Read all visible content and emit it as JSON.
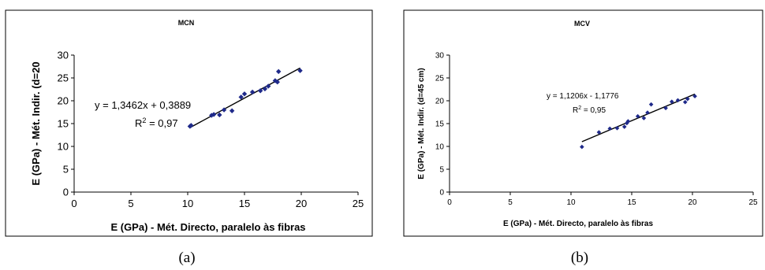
{
  "chart_data": [
    {
      "type": "scatter",
      "title": "MCN",
      "caption": "(a)",
      "xlabel": "E (GPa) - Mét. Directo, paralelo às fibras",
      "ylabel": "E (GPa) - Mét. Indir. (d=20",
      "xlim": [
        0,
        25
      ],
      "ylim": [
        0,
        30
      ],
      "xticks": [
        "0",
        "5",
        "10",
        "15",
        "20",
        "25"
      ],
      "yticks": [
        "0",
        "5",
        "10",
        "15",
        "20",
        "25",
        "30"
      ],
      "equation": "y = 1,3462x + 0,3889",
      "r2_label": "R",
      "r2_value": " = 0,97",
      "r2_sup": "2",
      "marker_color": "#1f2a8a",
      "trendline": {
        "slope": 1.3462,
        "intercept": 0.3889,
        "x_from": 10.2,
        "x_to": 19.9
      },
      "points": [
        [
          10.2,
          14.4
        ],
        [
          10.3,
          14.6
        ],
        [
          12.1,
          16.8
        ],
        [
          12.3,
          17.0
        ],
        [
          12.8,
          16.9
        ],
        [
          13.2,
          18.0
        ],
        [
          13.9,
          17.8
        ],
        [
          14.7,
          20.8
        ],
        [
          15.0,
          21.5
        ],
        [
          15.7,
          21.9
        ],
        [
          16.4,
          22.2
        ],
        [
          16.8,
          22.6
        ],
        [
          17.1,
          23.2
        ],
        [
          17.7,
          24.4
        ],
        [
          17.9,
          24.1
        ],
        [
          18.0,
          26.4
        ],
        [
          19.9,
          26.6
        ]
      ]
    },
    {
      "type": "scatter",
      "title": "MCV",
      "caption": "(b)",
      "xlabel": "E (GPa) - Mét. Directo, paralelo às fibras",
      "ylabel": "E (GPa) - Mét. Indir. (d=45 cm)",
      "xlim": [
        0,
        25
      ],
      "ylim": [
        0,
        30
      ],
      "xticks": [
        "0",
        "5",
        "10",
        "15",
        "20",
        "25"
      ],
      "yticks": [
        "0",
        "5",
        "10",
        "15",
        "20",
        "25",
        "30"
      ],
      "equation": "y = 1,1206x - 1,1776",
      "r2_label": "R",
      "r2_value": " = 0,95",
      "r2_sup": "2",
      "marker_color": "#1f2a8a",
      "trendline": {
        "slope": 1.1206,
        "intercept": -1.1776,
        "x_from": 10.9,
        "x_to": 20.2
      },
      "points": [
        [
          10.9,
          9.9
        ],
        [
          12.3,
          13.1
        ],
        [
          13.2,
          13.9
        ],
        [
          13.8,
          14.0
        ],
        [
          14.4,
          14.3
        ],
        [
          14.6,
          15.1
        ],
        [
          14.7,
          15.5
        ],
        [
          15.5,
          16.6
        ],
        [
          16.0,
          16.2
        ],
        [
          16.3,
          17.4
        ],
        [
          16.6,
          19.2
        ],
        [
          17.8,
          18.4
        ],
        [
          18.3,
          19.8
        ],
        [
          18.8,
          20.1
        ],
        [
          19.4,
          19.7
        ],
        [
          19.6,
          20.4
        ],
        [
          20.2,
          21.0
        ]
      ]
    }
  ]
}
